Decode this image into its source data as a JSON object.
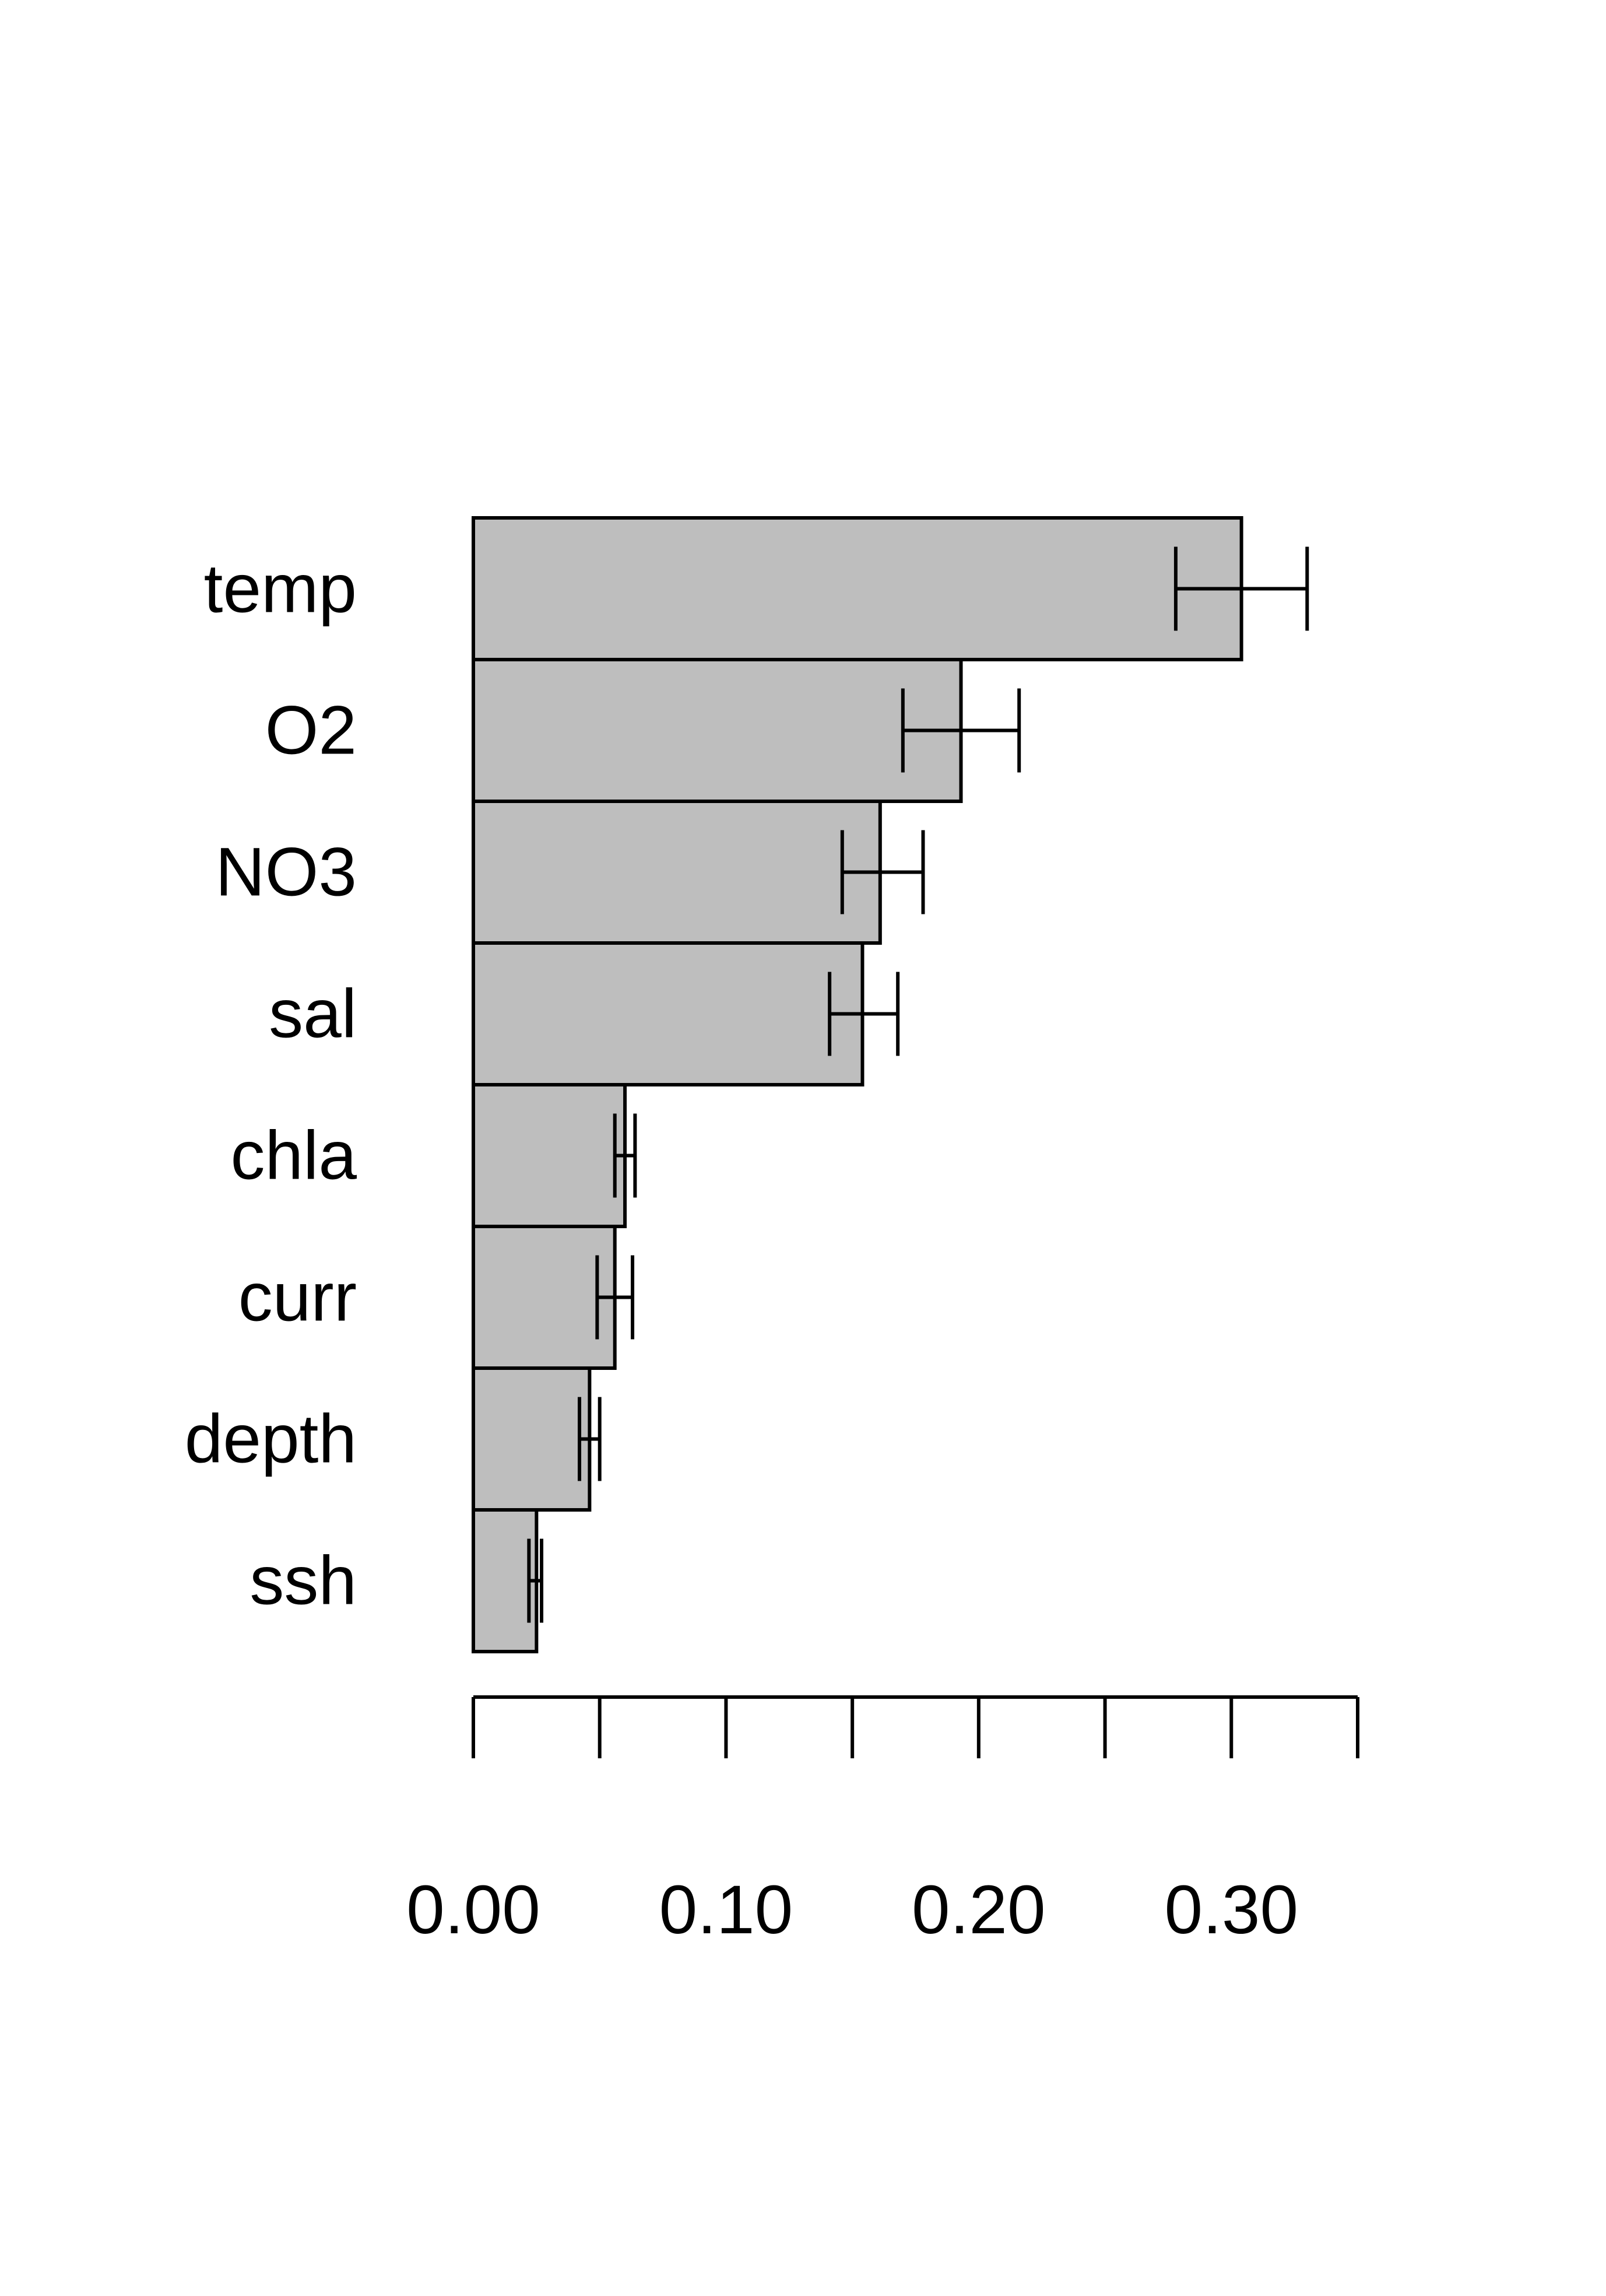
{
  "chart_data": {
    "type": "bar",
    "orientation": "horizontal",
    "categories": [
      "temp",
      "O2",
      "NO3",
      "sal",
      "chla",
      "curr",
      "depth",
      "ssh"
    ],
    "values": [
      0.304,
      0.193,
      0.161,
      0.154,
      0.06,
      0.056,
      0.046,
      0.025
    ],
    "error_low": [
      0.278,
      0.17,
      0.146,
      0.141,
      0.056,
      0.049,
      0.042,
      0.022
    ],
    "error_high": [
      0.33,
      0.216,
      0.178,
      0.168,
      0.064,
      0.063,
      0.05,
      0.027
    ],
    "xlim": [
      0,
      0.35
    ],
    "x_ticks": [
      0,
      0.05,
      0.1,
      0.15,
      0.2,
      0.25,
      0.3,
      0.35
    ],
    "x_tick_labels": [
      "0.00",
      "0.10",
      "0.20",
      "0.30"
    ],
    "x_tick_label_values": [
      0,
      0.1,
      0.2,
      0.3
    ],
    "title": "",
    "xlabel": "",
    "ylabel": "",
    "grid": false,
    "colors": {
      "bar_fill": "#bebebe",
      "bar_stroke": "#000000",
      "error_bar": "#000000"
    }
  }
}
